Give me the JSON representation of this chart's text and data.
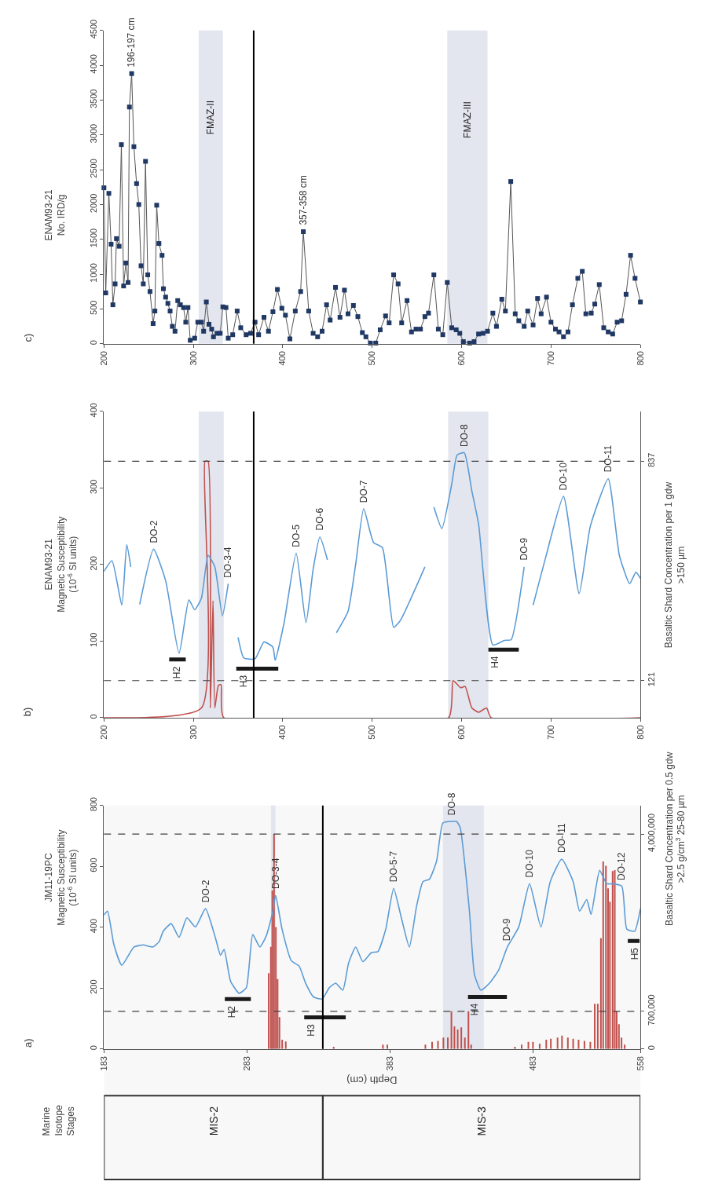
{
  "chart_data": [
    {
      "type": "line",
      "title": "c)",
      "ylabel": "ENAM93-21\nNo. IRD/g",
      "xlim": [
        200,
        800
      ],
      "xticks": [
        200,
        300,
        400,
        500,
        600,
        700,
        800
      ],
      "ylim": [
        0,
        4500
      ],
      "yticks": [
        0,
        500,
        1000,
        1500,
        2000,
        2500,
        3000,
        3500,
        4000,
        4500
      ],
      "marker": "square",
      "grid": false,
      "series": [
        {
          "color": "#1f3864",
          "x": [
            200,
            202,
            205.5,
            208,
            210,
            212.5,
            214,
            217,
            219.5,
            222,
            224.5,
            227,
            228.5,
            231,
            233.5,
            236.5,
            239,
            241.5,
            244,
            246.5,
            249,
            251.5,
            255,
            257,
            259,
            261.5,
            265,
            266.5,
            269,
            271.5,
            274,
            276.5,
            279.5,
            282.5,
            285.5,
            289,
            291.5,
            294,
            296.5,
            301.5,
            305,
            309,
            311.5,
            314.5,
            317.5,
            320.5,
            322.5,
            326.5,
            330,
            333,
            336.5,
            339,
            344,
            349,
            353,
            359,
            364,
            369,
            373,
            379,
            384,
            389,
            394,
            399,
            403,
            408,
            414,
            420,
            423,
            429,
            434,
            439,
            444,
            449,
            453,
            459,
            464,
            469,
            473,
            479,
            484,
            489,
            493,
            498,
            504,
            509,
            515,
            519,
            524,
            529,
            533,
            539,
            544,
            549,
            554,
            559,
            563,
            569,
            574,
            579,
            584,
            589,
            594,
            598,
            602,
            609,
            614,
            619,
            624,
            629,
            635,
            639,
            645,
            649,
            655,
            660,
            664,
            670,
            674,
            680,
            685,
            689,
            695,
            700,
            705,
            709,
            714,
            719,
            724,
            730,
            735,
            739,
            745,
            749,
            754,
            759,
            764,
            769,
            774,
            779,
            784,
            789,
            794,
            800
          ],
          "values": [
            2240,
            730,
            2160,
            1430,
            560,
            860,
            1510,
            1400,
            2860,
            830,
            1160,
            880,
            3400,
            3880,
            2830,
            2300,
            2000,
            1120,
            860,
            2620,
            990,
            750,
            290,
            470,
            1990,
            1440,
            1270,
            790,
            670,
            580,
            470,
            250,
            180,
            620,
            560,
            520,
            310,
            520,
            50,
            80,
            310,
            310,
            180,
            600,
            280,
            210,
            100,
            150,
            150,
            530,
            520,
            80,
            130,
            470,
            230,
            130,
            150,
            310,
            130,
            380,
            180,
            460,
            780,
            510,
            410,
            70,
            470,
            750,
            1610,
            470,
            150,
            100,
            180,
            560,
            340,
            810,
            380,
            770,
            430,
            550,
            390,
            160,
            100,
            10,
            10,
            200,
            400,
            300,
            990,
            860,
            300,
            620,
            170,
            210,
            210,
            390,
            440,
            990,
            210,
            130,
            880,
            230,
            200,
            150,
            30,
            10,
            30,
            140,
            150,
            180,
            440,
            250,
            640,
            470,
            2330,
            430,
            330,
            250,
            470,
            270,
            650,
            430,
            670,
            310,
            210,
            170,
            100,
            170,
            560,
            940,
            1040,
            430,
            440,
            570,
            850,
            230,
            170,
            140,
            310,
            330,
            710,
            1270,
            940,
            600
          ]
        }
      ],
      "bands": [
        {
          "axis": "x",
          "from": 306,
          "to": 333,
          "label": "FMAZ-II",
          "color": "#e3e6ee"
        },
        {
          "axis": "x",
          "from": 584,
          "to": 629,
          "label": "FMAZ-III",
          "color": "#e3e6ee"
        }
      ],
      "ref_lines": [
        {
          "axis": "x",
          "value": 367.5,
          "color": "#000000",
          "line_style": "solid"
        }
      ],
      "annotations": [
        {
          "text": "196-197 cm",
          "x": 231,
          "y": 3880
        },
        {
          "text": "357-358 cm",
          "x": 423,
          "y": 1610
        }
      ]
    },
    {
      "type": "line",
      "title": "b)",
      "ylabel": "ENAM93-21\nMagnetic Susceptibility\n(10$^{-6}$ SI units)",
      "y2label": "Basaltic Shard Concentration per 1 gdw\n>150 µm",
      "xlim": [
        200,
        800
      ],
      "xticks": [
        200,
        300,
        400,
        500,
        600,
        700,
        800
      ],
      "ylim": [
        0,
        400
      ],
      "yticks": [
        0,
        100,
        200,
        300,
        400
      ],
      "y2lim": [
        0,
        1000
      ],
      "y2ticks": [
        121,
        837
      ],
      "marker": "none",
      "grid": false,
      "series": [
        {
          "color": "#5b9bd5",
          "x": [
            200,
            209,
            220,
            225.5,
            230,
            235,
            240,
            255.5,
            269,
            284,
            295,
            301.5,
            309,
            316.5,
            324,
            332.5,
            339,
            345,
            350,
            356.5,
            369,
            379,
            389,
            391.5,
            401.5,
            415,
            426,
            434,
            441.5,
            450,
            455,
            460,
            473,
            481.5,
            490.5,
            501.5,
            511.5,
            524,
            531.5,
            559,
            564,
            569,
            578,
            589,
            595,
            603,
            611.5,
            619,
            635,
            648,
            655.5,
            670,
            675,
            680,
            694,
            714,
            731.5,
            744,
            764,
            776.5,
            788,
            795,
            800
          ],
          "values": [
            191,
            205,
            147,
            226,
            197,
            null,
            148,
            220,
            179,
            84,
            154,
            141,
            156,
            212,
            197,
            133,
            175,
            null,
            105,
            78,
            77,
            99,
            92,
            75,
            124,
            215,
            124,
            194,
            236,
            206,
            null,
            111,
            139,
            200,
            273,
            229,
            222,
            118,
            127,
            197,
            null,
            275,
            247,
            305,
            343,
            346,
            296,
            253,
            95,
            101,
            102,
            197,
            null,
            147,
            209,
            289,
            162,
            250,
            312,
            212,
            175,
            190,
            182
          ]
        },
        {
          "color": "#c0504d",
          "axis": "y2",
          "x": [
            200,
            309,
            313,
            316.5,
            319,
            322,
            324,
            328,
            331,
            334,
            585.5,
            590.5,
            599,
            604,
            611.5,
            619,
            628,
            633,
            800
          ],
          "values": [
            0,
            32,
            837,
            837,
            32,
            382,
            32,
            105,
            108,
            0,
            0,
            121,
            98,
            102,
            32,
            18,
            32,
            0,
            0
          ]
        },
        {
          "color": "#1a1a1a",
          "x": [
            273,
            291.5,
            300,
            348,
            395,
            400,
            630,
            664
          ],
          "values": [
            76,
            76,
            null,
            64,
            64,
            null,
            89,
            89
          ]
        }
      ],
      "bands": [
        {
          "axis": "x",
          "from": 306,
          "to": 334,
          "color": "#e3e6ee"
        },
        {
          "axis": "x",
          "from": 585,
          "to": 630,
          "color": "#e3e6ee"
        }
      ],
      "ref_lines": [
        {
          "axis": "y2",
          "value": 121,
          "color": "#404040",
          "line_style": "dashed"
        },
        {
          "axis": "y2",
          "value": 837,
          "color": "#404040",
          "line_style": "dashed"
        },
        {
          "axis": "x",
          "value": 367.5,
          "color": "#000000",
          "line_style": "solid"
        }
      ],
      "annotations": [
        {
          "text": "DO-2",
          "x": 255.5,
          "y": 220
        },
        {
          "text": "DO-3-4",
          "x": 339,
          "y": 175
        },
        {
          "text": "DO-5",
          "x": 415,
          "y": 215
        },
        {
          "text": "DO-6",
          "x": 441.5,
          "y": 236
        },
        {
          "text": "DO-7",
          "x": 490.5,
          "y": 273
        },
        {
          "text": "DO-8",
          "x": 603,
          "y": 346
        },
        {
          "text": "DO-9",
          "x": 670,
          "y": 197
        },
        {
          "text": "DO-10",
          "x": 714,
          "y": 289
        },
        {
          "text": "DO-11",
          "x": 764,
          "y": 312
        },
        {
          "text": "H2",
          "x": 273,
          "y": 76
        },
        {
          "text": "H3",
          "x": 348,
          "y": 64
        },
        {
          "text": "H4",
          "x": 630,
          "y": 89
        }
      ]
    },
    {
      "type": "line",
      "title": "a)",
      "ylabel": "JM11-19PC\nMagnetic Susceptibility\n(10$^{-6}$ SI units)",
      "y2label": "Basaltic Shard Concentration per 0.5 gdw\n>2.5 g/cm$^{3}$ 25-80 µm",
      "xlabel": "Depth (cm)",
      "xlim": [
        183,
        558
      ],
      "xticks": [
        183,
        283,
        383,
        483,
        558
      ],
      "ylim": [
        0,
        800
      ],
      "yticks": [
        0,
        200,
        400,
        600,
        800
      ],
      "y2lim": [
        0,
        4530000
      ],
      "y2ticks": [
        0,
        {
          "value": 700000,
          "label": "700,000"
        },
        {
          "value": 4000000,
          "label": "4,000,000"
        }
      ],
      "marker": "none",
      "grid": false,
      "series": [
        {
          "color": "#5b9bd5",
          "x": [
            183,
            185.5,
            190,
            195.5,
            204,
            210.5,
            217,
            221.5,
            224.5,
            230,
            235.5,
            241,
            247,
            254,
            261,
            264.5,
            267,
            271.5,
            277.5,
            282.5,
            287,
            292,
            296.5,
            301,
            303,
            307.5,
            314,
            319.5,
            324,
            329.5,
            335.5,
            340.5,
            345,
            350,
            354,
            359,
            364,
            370,
            374.5,
            380,
            385.5,
            390.5,
            396.5,
            401.5,
            406,
            410.5,
            415.5,
            420,
            426.5,
            429.5,
            432,
            438.5,
            442,
            446.5,
            452.5,
            459,
            465,
            473,
            480.5,
            488.5,
            495,
            503,
            511,
            515.5,
            520.5,
            523.5,
            529.5,
            534.5,
            538.5,
            545,
            548.5,
            554,
            558
          ],
          "values": [
            440,
            453,
            342,
            275,
            335,
            342,
            335,
            352,
            387,
            412,
            367,
            431,
            401,
            461,
            364,
            308,
            327,
            223,
            183,
            201,
            376,
            335,
            372,
            450,
            505,
            394,
            290,
            272,
            216,
            171,
            164,
            201,
            216,
            193,
            282,
            335,
            287,
            317,
            320,
            394,
            528,
            439,
            335,
            468,
            550,
            558,
            617,
            743,
            748,
            748,
            728,
            453,
            245,
            193,
            216,
            260,
            335,
            401,
            543,
            401,
            550,
            624,
            550,
            453,
            491,
            442,
            587,
            543,
            543,
            535,
            394,
            387,
            461
          ]
        },
        {
          "type": "bar",
          "color": "#c0504d",
          "axis": "y2",
          "x": [
            298.2,
            299.7,
            300.7,
            301.9,
            303.2,
            304.4,
            305.7,
            307.6,
            310.1,
            343.6,
            378,
            381.1,
            407.7,
            412.4,
            416.5,
            420.3,
            423.4,
            425.9,
            428,
            430.3,
            432.8,
            435.3,
            437.8,
            439.7,
            470.3,
            475,
            479.7,
            482.9,
            487.6,
            492.2,
            495.4,
            500.1,
            503.2,
            507.3,
            511,
            514.8,
            518.9,
            523,
            526.1,
            528.2,
            530.4,
            532,
            533.9,
            535.4,
            536.7,
            538.6,
            540.1,
            541.4,
            543,
            544.8,
            547
          ],
          "values": [
            1410000,
            1900000,
            2950000,
            4000000,
            2270000,
            1300000,
            590000,
            170000,
            140000,
            40000,
            80000,
            80000,
            80000,
            130000,
            150000,
            210000,
            210000,
            700000,
            420000,
            360000,
            400000,
            210000,
            700000,
            80000,
            40000,
            80000,
            130000,
            130000,
            100000,
            170000,
            190000,
            210000,
            250000,
            210000,
            190000,
            170000,
            150000,
            130000,
            840000,
            840000,
            2060000,
            3490000,
            3410000,
            2990000,
            2740000,
            3310000,
            3330000,
            700000,
            460000,
            210000,
            80000
          ]
        },
        {
          "color": "#1a1a1a",
          "x": [
            267.5,
            285.7,
            290,
            323,
            352,
            360,
            437.5,
            464.7,
            470,
            549.2,
            557.4
          ],
          "values": [
            164,
            164,
            null,
            104,
            104,
            null,
            171,
            171,
            null,
            355,
            355
          ]
        }
      ],
      "bands": [
        {
          "axis": "x",
          "from": 299.7,
          "to": 302.9,
          "color": "#e3e6ee"
        },
        {
          "axis": "x",
          "from": 420,
          "to": 448.5,
          "color": "#e3e6ee"
        },
        {
          "axis": "x",
          "from": 183,
          "to": 336,
          "label": "MIS-2",
          "color": "#f8f8f8"
        },
        {
          "axis": "x",
          "from": 336,
          "to": 558,
          "label": "MIS-3",
          "color": "#f8f8f8"
        }
      ],
      "ref_lines": [
        {
          "axis": "y2",
          "value": 700000,
          "color": "#404040",
          "line_style": "dashed"
        },
        {
          "axis": "y2",
          "value": 4000000,
          "color": "#404040",
          "line_style": "dashed"
        },
        {
          "axis": "x",
          "value": 336,
          "color": "#000000",
          "line_style": "solid"
        }
      ],
      "annotations": [
        "Marine Isotope Stages",
        {
          "text": "DO-2",
          "x": 254,
          "y": 461
        },
        {
          "text": "DO-3-4",
          "x": 303,
          "y": 505
        },
        {
          "text": "DO-5-7",
          "x": 385.5,
          "y": 528
        },
        {
          "text": "DO-8",
          "x": 426.5,
          "y": 748
        },
        {
          "text": "DO-9",
          "x": 465,
          "y": 335
        },
        {
          "text": "DO-10",
          "x": 480.5,
          "y": 543
        },
        {
          "text": "DO- 11",
          "x": 503,
          "y": 624
        },
        {
          "text": "DO-12",
          "x": 545,
          "y": 535
        },
        {
          "text": "H2",
          "x": 267.5,
          "y": 164
        },
        {
          "text": "H3",
          "x": 323,
          "y": 104
        },
        {
          "text": "H4",
          "x": 437.5,
          "y": 171
        },
        {
          "text": "H5",
          "x": 549.2,
          "y": 355
        }
      ]
    }
  ]
}
